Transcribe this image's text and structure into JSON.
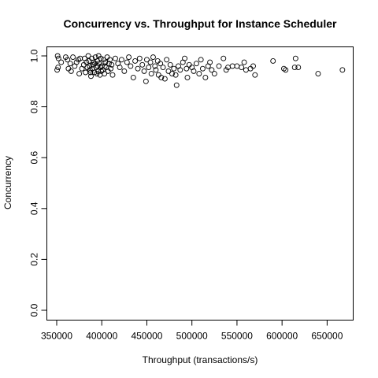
{
  "chart_data": {
    "type": "scatter",
    "title": "Concurrency vs. Throughput for Instance Scheduler",
    "xlabel": "Throughput (transactions/s)",
    "ylabel": "Concurrency",
    "xlim": [
      350000,
      668000
    ],
    "ylim": [
      0.0,
      1.0
    ],
    "x_ticks": [
      350000,
      400000,
      450000,
      500000,
      550000,
      600000,
      650000
    ],
    "y_ticks": [
      0.0,
      0.2,
      0.4,
      0.6,
      0.8,
      1.0
    ],
    "x_tick_labels": [
      "350000",
      "400000",
      "450000",
      "500000",
      "550000",
      "600000",
      "650000"
    ],
    "y_tick_labels": [
      "0.0",
      "0.2",
      "0.4",
      "0.6",
      "0.8",
      "1.0"
    ],
    "grid": false,
    "marker": "open-circle",
    "series": [
      {
        "points": [
          [
            351000,
            1.0
          ],
          [
            352000,
            0.99
          ],
          [
            351500,
            0.955
          ],
          [
            350500,
            0.945
          ],
          [
            355000,
            0.975
          ],
          [
            360000,
            0.995
          ],
          [
            362000,
            0.985
          ],
          [
            363000,
            0.95
          ],
          [
            365000,
            0.97
          ],
          [
            366000,
            0.94
          ],
          [
            368000,
            0.995
          ],
          [
            370000,
            0.96
          ],
          [
            372000,
            0.975
          ],
          [
            374000,
            0.985
          ],
          [
            375000,
            0.93
          ],
          [
            376000,
            0.99
          ],
          [
            378000,
            0.95
          ],
          [
            380000,
            0.965
          ],
          [
            381000,
            0.99
          ],
          [
            382000,
            0.935
          ],
          [
            383000,
            0.975
          ],
          [
            384000,
            0.955
          ],
          [
            385000,
            1.0
          ],
          [
            386000,
            0.98
          ],
          [
            387000,
            0.945
          ],
          [
            388000,
            0.92
          ],
          [
            389000,
            0.99
          ],
          [
            390000,
            0.965
          ],
          [
            391000,
            0.975
          ],
          [
            392000,
            0.935
          ],
          [
            393000,
            0.995
          ],
          [
            394000,
            0.955
          ],
          [
            395000,
            0.98
          ],
          [
            396000,
            0.94
          ],
          [
            397000,
            0.97
          ],
          [
            398000,
            0.925
          ],
          [
            399000,
            0.99
          ],
          [
            400000,
            0.96
          ],
          [
            401000,
            0.945
          ],
          [
            402000,
            0.985
          ],
          [
            403000,
            0.93
          ],
          [
            404000,
            0.975
          ],
          [
            405000,
            0.955
          ],
          [
            406000,
            0.995
          ],
          [
            407000,
            0.94
          ],
          [
            408000,
            0.97
          ],
          [
            409000,
            0.985
          ],
          [
            410000,
            0.95
          ],
          [
            411000,
            0.965
          ],
          [
            412000,
            0.925
          ],
          [
            386500,
            0.96
          ],
          [
            389500,
            0.95
          ],
          [
            392500,
            0.97
          ],
          [
            395500,
            0.96
          ],
          [
            398500,
            0.955
          ],
          [
            387500,
            0.935
          ],
          [
            394500,
            0.93
          ],
          [
            399500,
            0.94
          ],
          [
            403500,
            0.96
          ],
          [
            396500,
            1.0
          ],
          [
            415000,
            0.99
          ],
          [
            418000,
            0.97
          ],
          [
            420000,
            0.955
          ],
          [
            422000,
            0.985
          ],
          [
            425000,
            0.94
          ],
          [
            428000,
            0.975
          ],
          [
            430000,
            0.995
          ],
          [
            432000,
            0.96
          ],
          [
            435000,
            0.915
          ],
          [
            437000,
            0.98
          ],
          [
            440000,
            0.95
          ],
          [
            442000,
            0.99
          ],
          [
            445000,
            0.965
          ],
          [
            447000,
            0.94
          ],
          [
            449000,
            0.9
          ],
          [
            450000,
            0.985
          ],
          [
            452000,
            0.955
          ],
          [
            454000,
            0.975
          ],
          [
            455000,
            0.93
          ],
          [
            457000,
            0.995
          ],
          [
            459000,
            0.96
          ],
          [
            460000,
            0.945
          ],
          [
            462000,
            0.98
          ],
          [
            463000,
            0.925
          ],
          [
            465000,
            0.97
          ],
          [
            466000,
            0.915
          ],
          [
            468000,
            0.955
          ],
          [
            470000,
            0.91
          ],
          [
            472000,
            0.985
          ],
          [
            474000,
            0.94
          ],
          [
            476000,
            0.965
          ],
          [
            478000,
            0.93
          ],
          [
            480000,
            0.95
          ],
          [
            482000,
            0.925
          ],
          [
            483000,
            0.885
          ],
          [
            485000,
            0.96
          ],
          [
            487000,
            0.945
          ],
          [
            490000,
            0.975
          ],
          [
            492000,
            0.99
          ],
          [
            494000,
            0.95
          ],
          [
            495000,
            0.915
          ],
          [
            497000,
            0.965
          ],
          [
            500000,
            0.955
          ],
          [
            502000,
            0.94
          ],
          [
            505000,
            0.97
          ],
          [
            508000,
            0.93
          ],
          [
            510000,
            0.985
          ],
          [
            512000,
            0.95
          ],
          [
            515000,
            0.915
          ],
          [
            518000,
            0.96
          ],
          [
            520000,
            0.975
          ],
          [
            522000,
            0.945
          ],
          [
            525000,
            0.93
          ],
          [
            530000,
            0.96
          ],
          [
            535000,
            0.99
          ],
          [
            538000,
            0.945
          ],
          [
            540000,
            0.955
          ],
          [
            545000,
            0.96
          ],
          [
            550000,
            0.96
          ],
          [
            555000,
            0.955
          ],
          [
            558000,
            0.975
          ],
          [
            560000,
            0.945
          ],
          [
            565000,
            0.95
          ],
          [
            568000,
            0.96
          ],
          [
            570000,
            0.925
          ],
          [
            590000,
            0.98
          ],
          [
            602000,
            0.95
          ],
          [
            604000,
            0.945
          ],
          [
            614000,
            0.955
          ],
          [
            615000,
            0.99
          ],
          [
            618000,
            0.955
          ],
          [
            640000,
            0.93
          ],
          [
            667000,
            0.945
          ]
        ]
      }
    ]
  }
}
